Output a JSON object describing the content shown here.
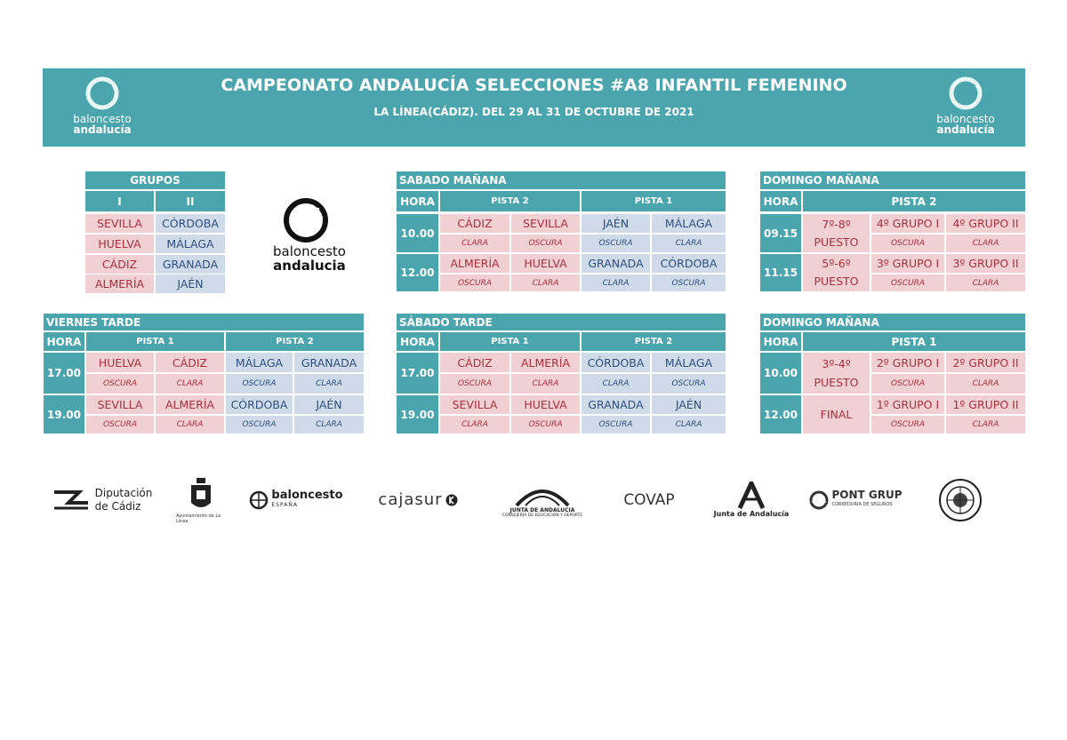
{
  "header": {
    "title": "CAMPEONATO ANDALUCÍA SELECCIONES #A8 INFANTIL FEMENINO",
    "subtitle": "LA LÍNEA(CÁDIZ). DEL 29 AL 31 DE OCTUBRE DE 2021",
    "logo_line1": "baloncesto",
    "logo_line2": "andalucía"
  },
  "colors": {
    "accent": "#4ba5ad",
    "pink": "#f0d0d3",
    "pink_text": "#a8303d",
    "blue": "#cfdbe9",
    "blue_text": "#2f4f7f"
  },
  "center_logo": {
    "line1": "baloncesto",
    "line2": "andalucia"
  },
  "grupos": {
    "title": "GRUPOS",
    "col1": "I",
    "col2": "II",
    "rows": [
      [
        "SEVILLA",
        "CÓRDOBA"
      ],
      [
        "HUELVA",
        "MÁLAGA"
      ],
      [
        "CÁDIZ",
        "GRANADA"
      ],
      [
        "ALMERÍA",
        "JAÉN"
      ]
    ]
  },
  "sabado_manana": {
    "title": "SABADO MAÑANA",
    "hora": "HORA",
    "pista_a": "PISTA 2",
    "pista_b": "PISTA 1",
    "rows": [
      {
        "time": "10.00",
        "teams": [
          "CÁDIZ",
          "SEVILLA",
          "JAÉN",
          "MÁLAGA"
        ],
        "kits": [
          "CLARA",
          "OSCURA",
          "OSCURA",
          "CLARA"
        ]
      },
      {
        "time": "12.00",
        "teams": [
          "ALMERÍA",
          "HUELVA",
          "GRANADA",
          "CÓRDOBA"
        ],
        "kits": [
          "OSCURA",
          "CLARA",
          "CLARA",
          "OSCURA"
        ]
      }
    ]
  },
  "domingo_manana_1": {
    "title": "DOMINGO MAÑANA",
    "hora": "HORA",
    "pista": "PISTA 2",
    "rows": [
      {
        "time": "09.15",
        "label1": "7º-8º",
        "label2": "PUESTO",
        "teams": [
          "4º GRUPO I",
          "4º GRUPO II"
        ],
        "kits": [
          "OSCURA",
          "CLARA"
        ]
      },
      {
        "time": "11.15",
        "label1": "5º-6º",
        "label2": "PUESTO",
        "teams": [
          "3º GRUPO I",
          "3º GRUPO II"
        ],
        "kits": [
          "OSCURA",
          "CLARA"
        ]
      }
    ]
  },
  "viernes_tarde": {
    "title": "VIERNES TARDE",
    "hora": "HORA",
    "pista_a": "PISTA 1",
    "pista_b": "PISTA 2",
    "rows": [
      {
        "time": "17.00",
        "teams": [
          "HUELVA",
          "CÁDIZ",
          "MÁLAGA",
          "GRANADA"
        ],
        "kits": [
          "OSCURA",
          "CLARA",
          "OSCURA",
          "CLARA"
        ]
      },
      {
        "time": "19.00",
        "teams": [
          "SEVILLA",
          "ALMERÍA",
          "CÓRDOBA",
          "JAÉN"
        ],
        "kits": [
          "OSCURA",
          "CLARA",
          "OSCURA",
          "CLARA"
        ]
      }
    ]
  },
  "sabado_tarde": {
    "title": "SÁBADO TARDE",
    "hora": "HORA",
    "pista_a": "PISTA 1",
    "pista_b": "PISTA 2",
    "rows": [
      {
        "time": "17.00",
        "teams": [
          "CÁDIZ",
          "ALMERÍA",
          "CÓRDOBA",
          "MÁLAGA"
        ],
        "kits": [
          "OSCURA",
          "CLARA",
          "CLARA",
          "OSCURA"
        ]
      },
      {
        "time": "19.00",
        "teams": [
          "SEVILLA",
          "HUELVA",
          "GRANADA",
          "JAÉN"
        ],
        "kits": [
          "CLARA",
          "OSCURA",
          "OSCURA",
          "CLARA"
        ]
      }
    ]
  },
  "domingo_manana_2": {
    "title": "DOMINGO MAÑANA",
    "hora": "HORA",
    "pista": "PISTA 1",
    "rows": [
      {
        "time": "10.00",
        "label1": "3º-4º",
        "label2": "PUESTO",
        "teams": [
          "2º GRUPO I",
          "2º GRUPO II"
        ],
        "kits": [
          "OSCURA",
          "CLARA"
        ]
      },
      {
        "time": "12.00",
        "label1": "FINAL",
        "label2": "",
        "teams": [
          "1º GRUPO I",
          "1º GRUPO II"
        ],
        "kits": [
          "OSCURA",
          "CLARA"
        ]
      }
    ]
  },
  "sponsors": {
    "diputacion_1": "Diputación",
    "diputacion_2": "de Cádiz",
    "ayuntamiento": "Ayuntamiento de La Línea",
    "feb": "baloncesto",
    "feb_sub": "ESPAÑA",
    "cajasur": "cajasur",
    "junta_edu_1": "JUNTA DE ANDALUCIA",
    "junta_edu_2": "CONSEJERÍA DE EDUCACIÓN Y DEPORTE",
    "covap": "COVAP",
    "junta": "Junta de Andalucía",
    "pont": "PONT GRUP",
    "pont_sub": "CORREDURIA DE SEGUROS"
  }
}
